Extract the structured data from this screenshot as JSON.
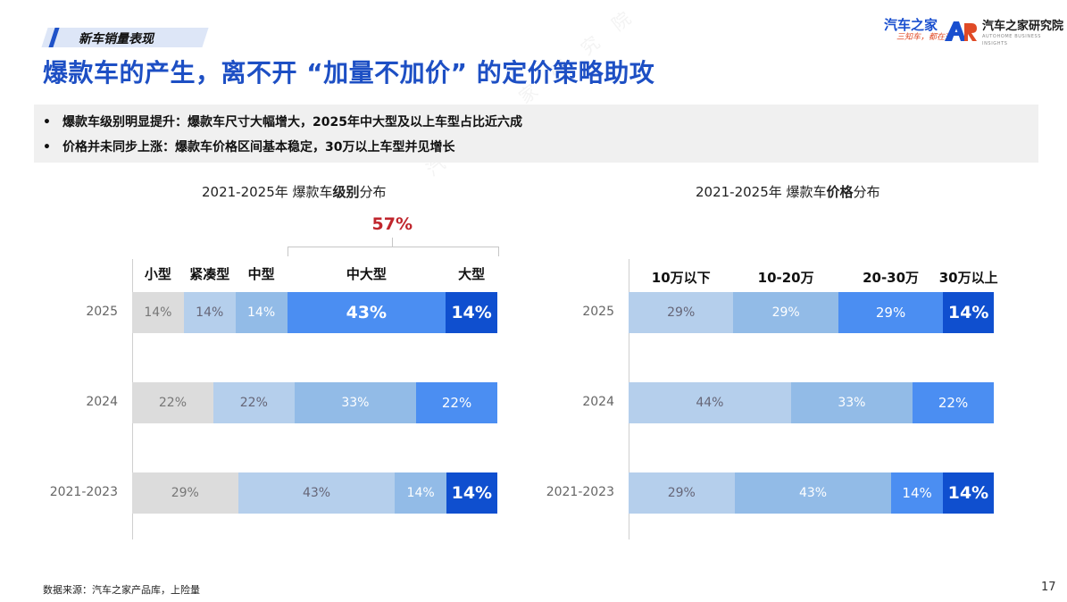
{
  "header": {
    "tag": "新车销量表现",
    "title": "爆款车的产生，离不开 “加量不加价” 的定价策略助攻",
    "logo1_main": "汽车之家",
    "logo1_sub": "三知车，都在这",
    "logo2_main": "汽车之家研究院",
    "logo2_sub": "AUTOHOME BUSINESS INSIGHTS"
  },
  "bullets": [
    "爆款车级别明显提升：爆款车尺寸大幅增大，2025年中大型及以上车型占比近六成",
    "价格并未同步上涨：爆款车价格区间基本稳定，30万以上车型并见增长"
  ],
  "bullet_mark": "•",
  "watermark": "汽车之家研究院",
  "footer": {
    "source": "数据来源：汽车之家产品库，上险量",
    "page": "17"
  },
  "colors": [
    "#dcdcdc",
    "#b5cfec",
    "#92bbe7",
    "#4b8ef2",
    "#0f4fcf"
  ],
  "chart_data": [
    {
      "type": "bar",
      "orientation": "horizontal-stacked",
      "title_prefix": "2021-2025年 爆款车",
      "title_bold": "级别",
      "title_suffix": "分布",
      "categories": [
        "2025",
        "2024",
        "2021-2023"
      ],
      "series": [
        {
          "name": "小型",
          "values": [
            14,
            0,
            0
          ]
        },
        {
          "name": "紧凑型",
          "values": [
            14,
            22,
            29
          ]
        },
        {
          "name": "中型",
          "values": [
            14,
            22,
            43
          ]
        },
        {
          "name": "中大型",
          "values": [
            43,
            33,
            14
          ]
        },
        {
          "name": "大型",
          "values": [
            14,
            22,
            14
          ]
        }
      ],
      "segments": [
        [
          {
            "value": 14,
            "label": "14%",
            "color": 0
          },
          {
            "value": 14,
            "label": "14%",
            "color": 1
          },
          {
            "value": 14,
            "label": "14%",
            "color": 2
          },
          {
            "value": 43,
            "label": "43%",
            "color": 3
          },
          {
            "value": 14,
            "label": "14%",
            "color": 4
          }
        ],
        [
          {
            "value": 22,
            "label": "22%",
            "color": 0
          },
          {
            "value": 22,
            "label": "22%",
            "color": 1
          },
          {
            "value": 33,
            "label": "33%",
            "color": 2
          },
          {
            "value": 22,
            "label": "22%",
            "color": 3
          }
        ],
        [
          {
            "value": 29,
            "label": "29%",
            "color": 0
          },
          {
            "value": 43,
            "label": "43%",
            "color": 1
          },
          {
            "value": 14,
            "label": "14%",
            "color": 2
          },
          {
            "value": 14,
            "label": "14%",
            "color": 4
          }
        ]
      ],
      "annotation": {
        "label": "57%",
        "from_series": 3,
        "to_series": 4
      }
    },
    {
      "type": "bar",
      "orientation": "horizontal-stacked",
      "title_prefix": "2021-2025年 爆款车",
      "title_bold": "价格",
      "title_suffix": "分布",
      "categories": [
        "2025",
        "2024",
        "2021-2023"
      ],
      "series": [
        {
          "name": "10万以下",
          "values": [
            29,
            44,
            29
          ]
        },
        {
          "name": "10-20万",
          "values": [
            29,
            33,
            43
          ]
        },
        {
          "name": "20-30万",
          "values": [
            29,
            22,
            14
          ]
        },
        {
          "name": "30万以上",
          "values": [
            14,
            0,
            14
          ]
        }
      ],
      "segments": [
        [
          {
            "value": 29,
            "label": "29%",
            "color": 1
          },
          {
            "value": 29,
            "label": "29%",
            "color": 2
          },
          {
            "value": 29,
            "label": "29%",
            "color": 3
          },
          {
            "value": 14,
            "label": "14%",
            "color": 4
          }
        ],
        [
          {
            "value": 44,
            "label": "44%",
            "color": 1
          },
          {
            "value": 33,
            "label": "33%",
            "color": 2
          },
          {
            "value": 22,
            "label": "22%",
            "color": 3
          }
        ],
        [
          {
            "value": 29,
            "label": "29%",
            "color": 1
          },
          {
            "value": 43,
            "label": "43%",
            "color": 2
          },
          {
            "value": 14,
            "label": "14%",
            "color": 3
          },
          {
            "value": 14,
            "label": "14%",
            "color": 4
          }
        ]
      ]
    }
  ]
}
